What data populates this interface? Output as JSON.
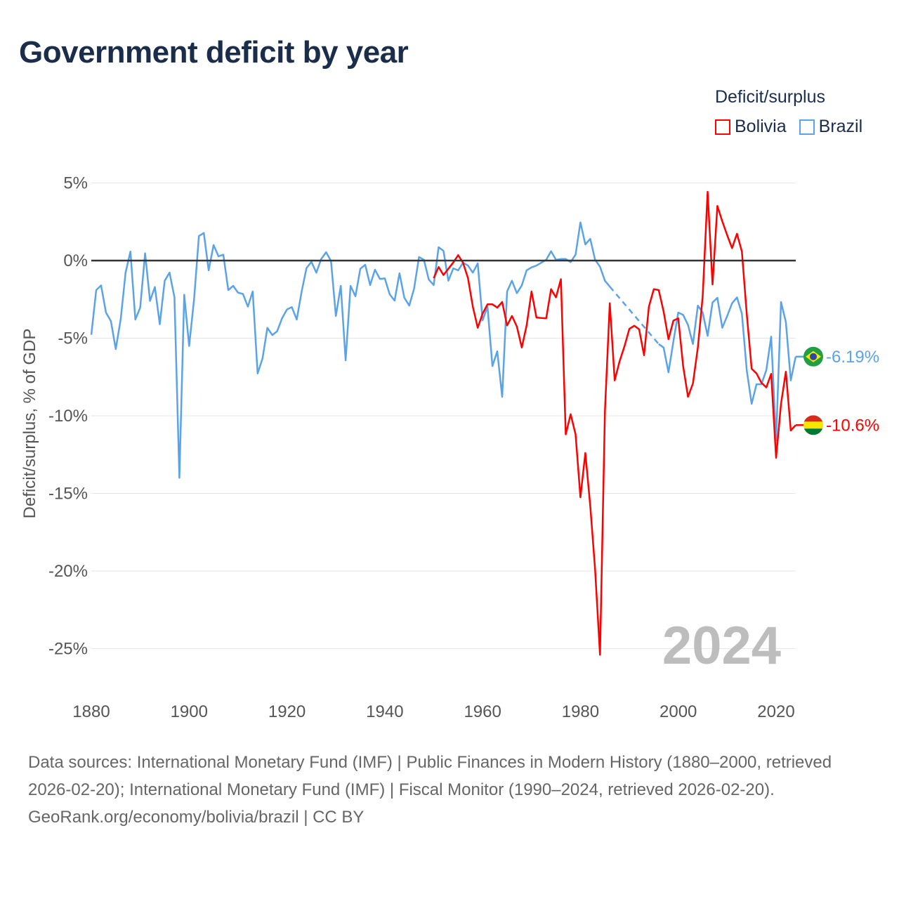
{
  "title": "Government deficit by year",
  "legend": {
    "title": "Deficit/surplus",
    "items": [
      {
        "label": "Bolivia",
        "color": "#ff0000"
      },
      {
        "label": "Brazil",
        "color": "#5ba3e8"
      }
    ]
  },
  "footer": {
    "sources": "Data sources: International Monetary Fund (IMF) | Public Finances in Modern History (1880–2000, retrieved 2026-02-20); International Monetary Fund (IMF) | Fiscal Monitor (1990–2024, retrieved 2026-02-20).",
    "credit": "GeoRank.org/economy/bolivia/brazil | CC BY"
  },
  "chart_data": {
    "type": "line",
    "title": "Government deficit by year",
    "xlabel": "",
    "ylabel": "Deficit/surplus, % of GDP",
    "xlim": [
      1880,
      2024
    ],
    "ylim": [
      -25,
      5
    ],
    "x_ticks": [
      "1880",
      "1900",
      "1920",
      "1940",
      "1960",
      "1980",
      "2000",
      "2020"
    ],
    "x_tick_values": [
      1880,
      1900,
      1920,
      1940,
      1960,
      1980,
      2000,
      2020
    ],
    "y_ticks": [
      "5%",
      "0%",
      "-5%",
      "-10%",
      "-15%",
      "-20%",
      "-25%"
    ],
    "y_tick_values": [
      5,
      0,
      -5,
      -10,
      -15,
      -20,
      -25
    ],
    "year_label": "2024",
    "series": [
      {
        "name": "Brazil",
        "color": "#5ba3e8",
        "end_label": "-6.19%",
        "x": [
          1880,
          1881,
          1882,
          1883,
          1884,
          1885,
          1886,
          1887,
          1888,
          1889,
          1890,
          1891,
          1892,
          1893,
          1894,
          1895,
          1896,
          1897,
          1898,
          1899,
          1900,
          1901,
          1902,
          1903,
          1904,
          1905,
          1906,
          1907,
          1908,
          1909,
          1910,
          1911,
          1912,
          1913,
          1914,
          1915,
          1916,
          1917,
          1918,
          1919,
          1920,
          1921,
          1922,
          1923,
          1924,
          1925,
          1926,
          1927,
          1928,
          1929,
          1930,
          1931,
          1932,
          1933,
          1934,
          1935,
          1936,
          1937,
          1938,
          1939,
          1940,
          1941,
          1942,
          1943,
          1944,
          1945,
          1946,
          1947,
          1948,
          1949,
          1950,
          1951,
          1952,
          1953,
          1954,
          1955,
          1956,
          1957,
          1958,
          1959,
          1960,
          1961,
          1962,
          1963,
          1964,
          1965,
          1966,
          1967,
          1968,
          1969,
          1970,
          1971,
          1972,
          1973,
          1974,
          1975,
          1976,
          1977,
          1978,
          1979,
          1980,
          1981,
          1982,
          1983,
          1984,
          1985,
          1986,
          1996,
          1997,
          1998,
          1999,
          2000,
          2001,
          2002,
          2003,
          2004,
          2005,
          2006,
          2007,
          2008,
          2009,
          2010,
          2011,
          2012,
          2013,
          2014,
          2015,
          2016,
          2017,
          2018,
          2019,
          2020,
          2021,
          2022,
          2023,
          2024
        ],
        "values": [
          -4.78,
          -1.9,
          -1.6,
          -3.35,
          -3.9,
          -5.7,
          -3.8,
          -0.78,
          0.58,
          -3.8,
          -3.03,
          0.47,
          -2.6,
          -1.7,
          -4.1,
          -1.3,
          -0.78,
          -2.37,
          -14.0,
          -2.2,
          -5.5,
          -2.5,
          1.58,
          1.78,
          -0.63,
          1.0,
          0.27,
          0.38,
          -1.9,
          -1.63,
          -2.07,
          -2.15,
          -2.97,
          -1.99,
          -7.27,
          -6.3,
          -4.33,
          -4.8,
          -4.55,
          -3.72,
          -3.15,
          -3.0,
          -3.8,
          -1.99,
          -0.48,
          -0.08,
          -0.78,
          0.1,
          0.54,
          -0.03,
          -3.57,
          -1.63,
          -6.43,
          -1.63,
          -2.3,
          -0.53,
          -0.27,
          -1.58,
          -0.59,
          -1.18,
          -1.15,
          -2.17,
          -2.58,
          -0.82,
          -2.4,
          -2.9,
          -1.8,
          0.23,
          0.05,
          -1.22,
          -1.58,
          0.86,
          0.63,
          -1.3,
          -0.5,
          -0.63,
          -0.14,
          -0.32,
          -0.78,
          -0.18,
          -3.85,
          -2.97,
          -6.8,
          -5.84,
          -8.78,
          -1.99,
          -1.3,
          -2.1,
          -1.6,
          -0.63,
          -0.44,
          -0.32,
          -0.14,
          0.05,
          0.6,
          0.05,
          0.1,
          0.1,
          -0.1,
          0.38,
          2.46,
          1.04,
          1.4,
          0.05,
          -0.4,
          -1.3,
          -1.68,
          -5.38,
          -5.6,
          -7.2,
          -5.2,
          -3.35,
          -3.5,
          -4.15,
          -5.38,
          -2.9,
          -3.35,
          -4.85,
          -2.7,
          -2.4,
          -4.33,
          -3.57,
          -2.75,
          -2.37,
          -3.42,
          -7.05,
          -9.23,
          -7.97,
          -7.97,
          -7.05,
          -4.9,
          -11.57,
          -2.67,
          -3.95,
          -7.72,
          -6.19
        ]
      },
      {
        "name": "Bolivia",
        "color": "#ff0000",
        "end_label": "-10.6%",
        "x": [
          1950,
          1951,
          1952,
          1953,
          1954,
          1955,
          1956,
          1957,
          1958,
          1959,
          1960,
          1961,
          1962,
          1963,
          1964,
          1965,
          1966,
          1967,
          1968,
          1969,
          1970,
          1971,
          1972,
          1973,
          1974,
          1975,
          1976,
          1977,
          1978,
          1979,
          1980,
          1981,
          1982,
          1983,
          1984,
          1985,
          1986,
          1987,
          1988,
          1989,
          1990,
          1991,
          1992,
          1993,
          1994,
          1995,
          1996,
          1997,
          1998,
          1999,
          2000,
          2001,
          2002,
          2003,
          2004,
          2005,
          2006,
          2007,
          2008,
          2009,
          2010,
          2011,
          2012,
          2013,
          2014,
          2015,
          2016,
          2017,
          2018,
          2019,
          2020,
          2021,
          2022,
          2023,
          2024
        ],
        "values": [
          -1.13,
          -0.41,
          -0.93,
          -0.53,
          -0.12,
          0.35,
          -0.14,
          -1.13,
          -2.97,
          -4.33,
          -3.42,
          -2.82,
          -2.82,
          -3.03,
          -2.67,
          -4.18,
          -3.57,
          -4.25,
          -5.6,
          -4.18,
          -1.99,
          -3.67,
          -3.7,
          -3.72,
          -1.84,
          -2.37,
          -1.2,
          -11.2,
          -9.9,
          -11.2,
          -15.25,
          -12.4,
          -15.8,
          -19.9,
          -25.4,
          -9.7,
          -2.75,
          -7.72,
          -6.5,
          -5.53,
          -4.4,
          -4.2,
          -4.43,
          -6.1,
          -2.97,
          -1.84,
          -1.9,
          -3.27,
          -5.07,
          -3.87,
          -3.72,
          -6.82,
          -8.78,
          -7.92,
          -5.6,
          -2.3,
          4.43,
          -1.54,
          3.52,
          2.53,
          1.63,
          0.8,
          1.73,
          0.58,
          -3.42,
          -6.97,
          -7.27,
          -7.87,
          -8.17,
          -7.3,
          -12.7,
          -9.23,
          -7.16,
          -10.95,
          -10.6
        ]
      }
    ]
  }
}
